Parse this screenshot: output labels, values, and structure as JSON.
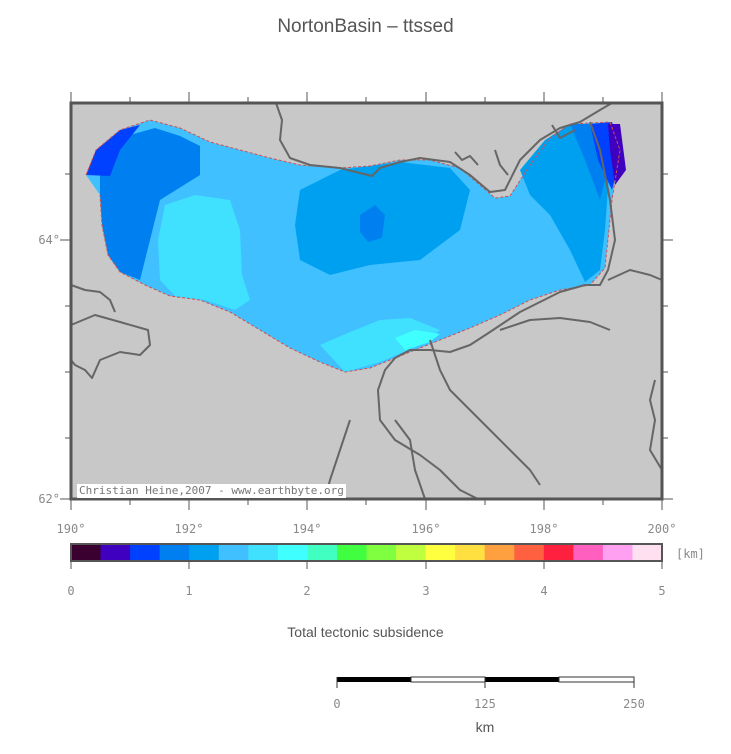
{
  "map": {
    "title": "NortonBasin – ttssed",
    "credit": "Christian Heine,2007 - www.earthbyte.org",
    "x_ticks": [
      "190°",
      "192°",
      "194°",
      "196°",
      "198°",
      "200°"
    ],
    "y_ticks": [
      "64°",
      "62°"
    ],
    "colors": {
      "land": "#c8c8c8",
      "coastline": "#666666",
      "basin_outline": "#d05050",
      "frame": "#555555"
    }
  },
  "colorbar": {
    "unit": "[km]",
    "labels": [
      "0",
      "1",
      "2",
      "3",
      "4",
      "5"
    ],
    "caption": "Total tectonic subsidence",
    "colors": [
      "#3a0030",
      "#4000c0",
      "#0040ff",
      "#0080f0",
      "#00a0f0",
      "#40c0ff",
      "#40e0ff",
      "#40ffff",
      "#40ffc0",
      "#40ff40",
      "#80ff40",
      "#c0ff40",
      "#ffff40",
      "#ffe040",
      "#ffa040",
      "#ff6040",
      "#ff2040",
      "#ff60c0",
      "#ffa0f0",
      "#ffe0f0"
    ]
  },
  "scalebar": {
    "labels": [
      "0",
      "125",
      "250"
    ],
    "unit": "km"
  }
}
